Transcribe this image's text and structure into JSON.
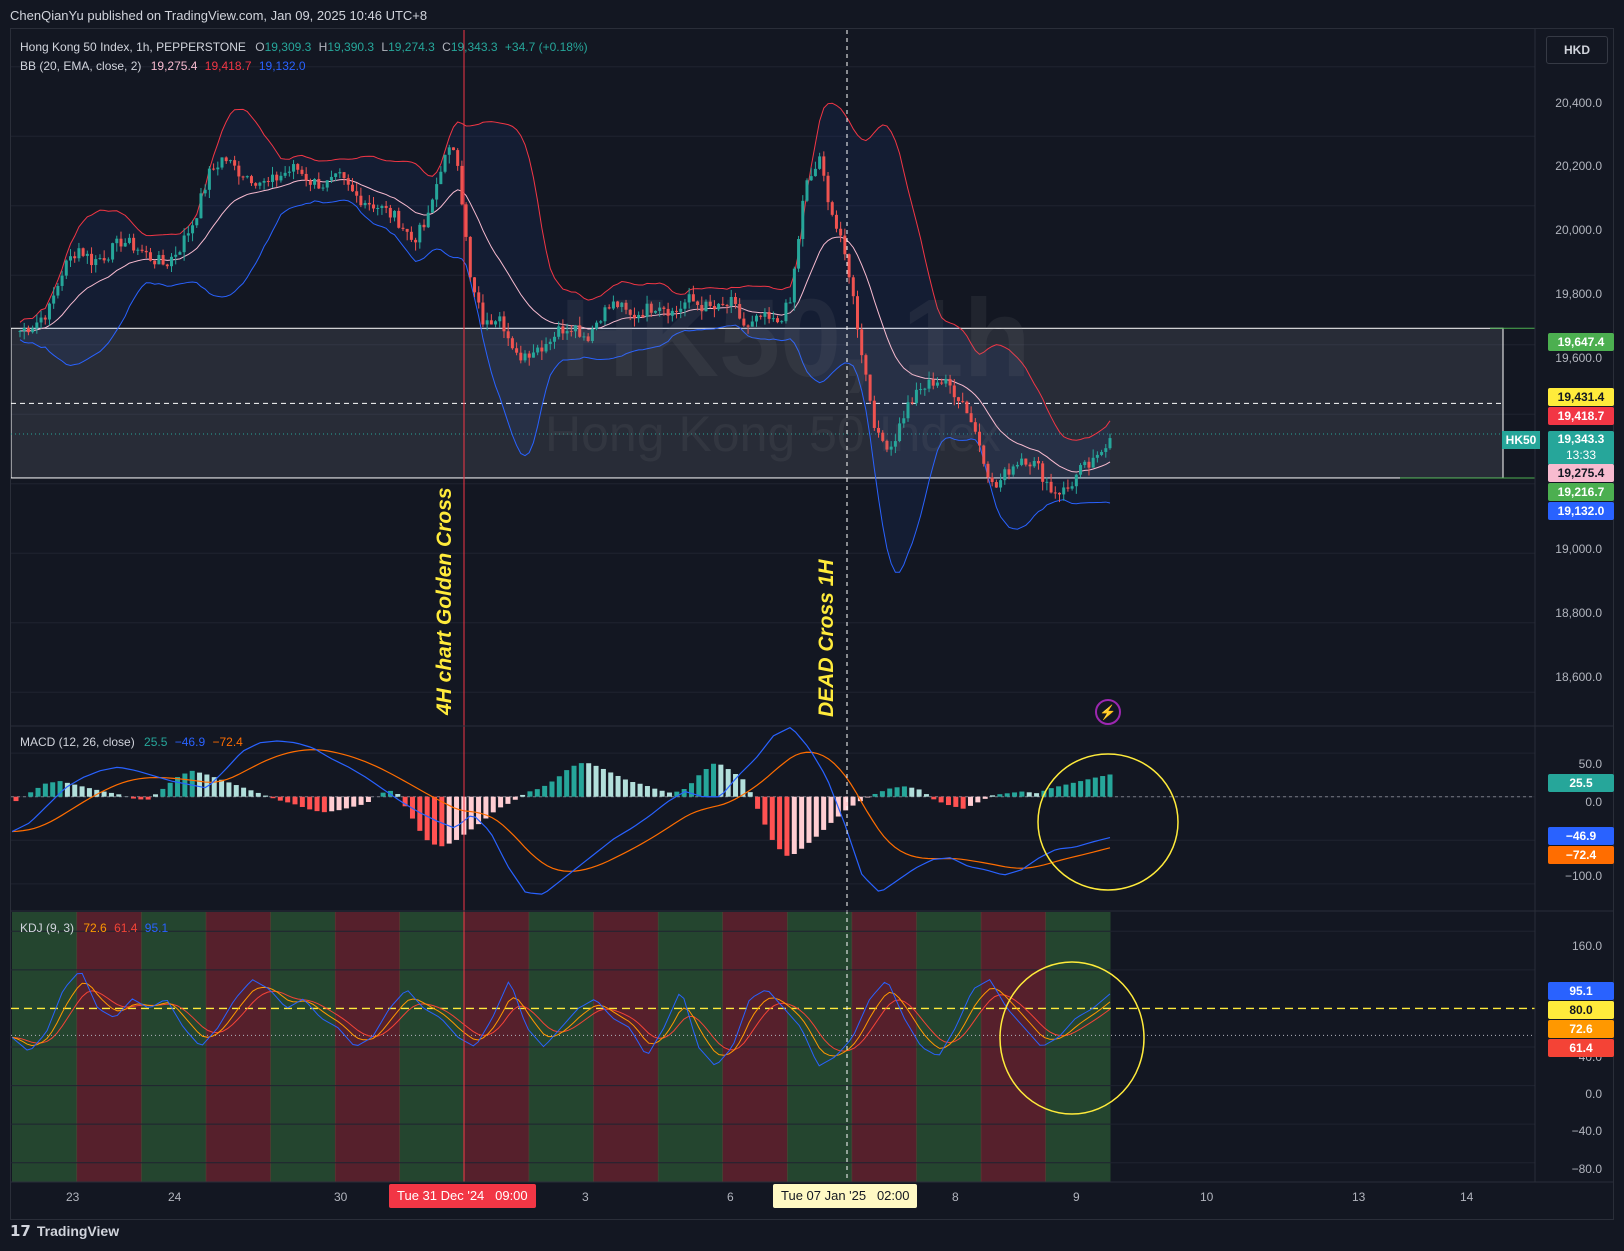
{
  "header": {
    "publisher": "ChenQianYu published on TradingView.com, Jan 09, 2025 10:46 UTC+8"
  },
  "currency_button": "HKD",
  "legend": {
    "symbol": "Hong Kong 50 Index, 1h, PEPPERSTONE",
    "o_label": "O",
    "o": "19,309.3",
    "h_label": "H",
    "h": "19,390.3",
    "l_label": "L",
    "l": "19,274.3",
    "c_label": "C",
    "c": "19,343.3",
    "change": "+34.7 (+0.18%)",
    "bb_label": "BB (20, EMA, close, 2)",
    "bb_mid": "19,275.4",
    "bb_up": "19,418.7",
    "bb_low": "19,132.0",
    "macd_label": "MACD (12, 26, close)",
    "macd_hist": "25.5",
    "macd_line": "−46.9",
    "macd_signal": "−72.4",
    "kdj_label": "KDJ (9, 3)",
    "kdj_k": "72.6",
    "kdj_d": "61.4",
    "kdj_j": "95.1"
  },
  "watermark": {
    "line1": "HK50, 1h",
    "line2": "Hong Kong 50 Index"
  },
  "annotations": {
    "golden": "4H chart Golden Cross",
    "dead": "DEAD Cross 1H"
  },
  "price_axis": [
    "20,400.0",
    "20,200.0",
    "20,000.0",
    "19,800.0",
    "19,600.0",
    "19,000.0",
    "18,800.0",
    "18,600.0"
  ],
  "price_tags": {
    "zone_top": "19,647.4",
    "dash_level": "19,431.4",
    "bb_up": "19,418.7",
    "symbol": "HK50",
    "last": "19,343.3",
    "countdown": "13:33",
    "bb_mid": "19,275.4",
    "zone_bottom": "19,216.7",
    "bb_low": "19,132.0"
  },
  "macd_axis": [
    "50.0",
    "0.0",
    "−100.0"
  ],
  "macd_tags": {
    "hist": "25.5",
    "macd": "−46.9",
    "signal": "−72.4"
  },
  "kdj_axis": [
    "160.0",
    "40.0",
    "0.0",
    "−40.0",
    "−80.0"
  ],
  "kdj_tags": {
    "j": "95.1",
    "level": "80.0",
    "k": "72.6",
    "d": "61.4"
  },
  "x_axis": [
    "23",
    "24",
    "30",
    "3",
    "6",
    "8",
    "9",
    "10",
    "13",
    "14"
  ],
  "x_highlights": {
    "golden": "Tue 31 Dec '24   09:00",
    "dead": "Tue 07 Jan '25   02:00"
  },
  "footer": {
    "brand": "TradingView"
  },
  "colors": {
    "up": "#26a69a",
    "down": "#ef5350",
    "bb_upper": "#f23645",
    "bb_lower": "#2962ff",
    "bb_mid": "#f8bbd0",
    "annotation": "#ffeb3b",
    "k": "#ff9800",
    "d": "#f44336",
    "j": "#2962ff"
  },
  "chart_data": [
    {
      "type": "candlestick",
      "title": "Hong Kong 50 Index, 1h, PEPPERSTONE",
      "ylim": [
        18500,
        20500
      ],
      "y_ticks": [
        18600,
        18800,
        19000,
        19200,
        19400,
        19600,
        19800,
        20000,
        20200,
        20400
      ],
      "last_close": 19343.3,
      "zone": [
        19216.7,
        19647.4
      ],
      "dashed_level": 19431.4,
      "bollinger": {
        "upper": 19418.7,
        "middle": 19275.4,
        "lower": 19132.0
      },
      "close_path": [
        19640,
        19660,
        19700,
        19820,
        19880,
        19840,
        19860,
        19900,
        19880,
        19850,
        19830,
        19880,
        19960,
        20090,
        20140,
        20100,
        20080,
        20060,
        20090,
        20110,
        20070,
        20060,
        20080,
        20030,
        20010,
        19990,
        19960,
        19900,
        19950,
        20120,
        20180,
        19780,
        19650,
        19700,
        19560,
        19580,
        19600,
        19640,
        19660,
        19620,
        19690,
        19720,
        19680,
        19700,
        19720,
        19690,
        19730,
        19710,
        19700,
        19720,
        19640,
        19680,
        19660,
        19720,
        20050,
        20130,
        19960,
        19820,
        19560,
        19330,
        19310,
        19420,
        19470,
        19500,
        19480,
        19430,
        19320,
        19180,
        19240,
        19280,
        19250,
        19180,
        19180,
        19240,
        19260,
        19343
      ],
      "x_labels": [
        "23",
        "24",
        "30",
        "3",
        "6",
        "8",
        "9",
        "10",
        "13",
        "14"
      ]
    },
    {
      "type": "bar",
      "title": "MACD (12, 26, close)",
      "ylim": [
        -130,
        80
      ],
      "values": {
        "histogram": 25.5,
        "macd": -46.9,
        "signal": -72.4
      },
      "histogram_path": [
        -5,
        5,
        15,
        18,
        14,
        10,
        6,
        3,
        -2,
        -4,
        8,
        22,
        30,
        26,
        20,
        14,
        8,
        2,
        -4,
        -8,
        -14,
        -18,
        -16,
        -12,
        -8,
        4,
        8,
        -20,
        -48,
        -58,
        -52,
        -40,
        -28,
        -14,
        -6,
        5,
        10,
        20,
        34,
        40,
        34,
        26,
        18,
        14,
        8,
        4,
        10,
        28,
        40,
        30,
        18,
        -20,
        -55,
        -70,
        -58,
        -44,
        -28,
        -14,
        -4,
        4,
        10,
        12,
        8,
        -4,
        -10,
        -14,
        -6,
        2,
        4,
        6,
        4,
        10,
        14,
        18,
        22,
        25.5
      ],
      "macd_path": [
        -40,
        -30,
        -10,
        10,
        22,
        30,
        34,
        30,
        24,
        18,
        14,
        10,
        30,
        52,
        62,
        64,
        62,
        56,
        44,
        34,
        22,
        8,
        -6,
        -18,
        -28,
        -36,
        -20,
        -40,
        -80,
        -110,
        -112,
        -96,
        -80,
        -64,
        -48,
        -36,
        -22,
        -6,
        6,
        0,
        0,
        24,
        44,
        70,
        80,
        56,
        22,
        -30,
        -90,
        -110,
        -96,
        -82,
        -72,
        -70,
        -80,
        -84,
        -90,
        -84,
        -70,
        -60,
        -58,
        -52,
        -46.9
      ]
    },
    {
      "type": "line",
      "title": "KDJ (9, 3)",
      "ylim": [
        -100,
        180
      ],
      "values": {
        "K": 72.6,
        "D": 61.4,
        "J": 95.1
      },
      "reference_level": 80.0,
      "j_path": [
        50,
        35,
        55,
        100,
        120,
        80,
        70,
        90,
        80,
        90,
        60,
        40,
        60,
        90,
        110,
        100,
        80,
        90,
        70,
        60,
        40,
        50,
        80,
        100,
        80,
        70,
        50,
        40,
        70,
        110,
        60,
        40,
        60,
        80,
        90,
        70,
        60,
        30,
        60,
        100,
        40,
        20,
        40,
        90,
        100,
        80,
        60,
        20,
        30,
        50,
        90,
        110,
        70,
        40,
        30,
        60,
        100,
        110,
        80,
        60,
        40,
        50,
        70,
        80,
        95.1
      ],
      "regime_colors": [
        "green",
        "red",
        "green",
        "red",
        "green",
        "red",
        "green",
        "red",
        "green",
        "red",
        "green",
        "red",
        "green",
        "red",
        "green",
        "red",
        "green"
      ]
    }
  ]
}
